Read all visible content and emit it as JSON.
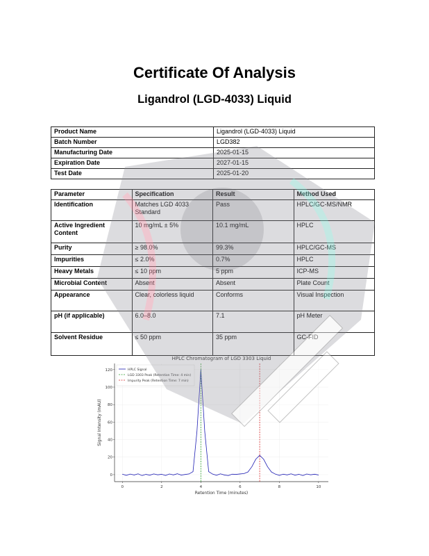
{
  "title": "Certificate Of Analysis",
  "subtitle": "Ligandrol (LGD-4033) Liquid",
  "product_info": [
    {
      "label": "Product Name",
      "value": "Ligandrol (LGD-4033) Liquid"
    },
    {
      "label": "Batch Number",
      "value": "LGD382"
    },
    {
      "label": "Manufacturing Date",
      "value": "2025-01-15"
    },
    {
      "label": "Expiration Date",
      "value": "2027-01-15"
    },
    {
      "label": "Test Date",
      "value": "2025-01-20"
    }
  ],
  "tests": {
    "headers": [
      "Parameter",
      "Specification",
      "Result",
      "Method Used"
    ],
    "rows": [
      [
        "Identification",
        "Matches LGD 4033 Standard",
        "Pass",
        "HPLC/GC-MS/NMR"
      ],
      [
        "Active Ingredient Content",
        "10 mg/mL ± 5%",
        "10.1 mg/mL",
        "HPLC"
      ],
      [
        "Purity",
        "≥ 98.0%",
        "99.3%",
        "HPLC/GC-MS"
      ],
      [
        "Impurities",
        "≤ 2.0%",
        "0.7%",
        "HPLC"
      ],
      [
        "Heavy Metals",
        "≤ 10 ppm",
        "5 ppm",
        "ICP-MS"
      ],
      [
        "Microbial Content",
        "Absent",
        "Absent",
        "Plate Count"
      ],
      [
        "Appearance",
        "Clear, colorless liquid",
        "Conforms",
        "Visual Inspection"
      ],
      [
        "pH (if applicable)",
        "6.0–8.0",
        "7.1",
        "pH Meter"
      ],
      [
        "Solvent Residue",
        "≤ 50 ppm",
        "35 ppm",
        "GC-FID"
      ]
    ]
  },
  "watermark": "BEHEMOTH LABZ",
  "chart_data": {
    "type": "line",
    "title": "HPLC Chromatogram of LGD 3303 Liquid",
    "xlabel": "Retention Time (minutes)",
    "ylabel": "Signal Intensity (mAU)",
    "xlim": [
      -0.4,
      10.5
    ],
    "ylim": [
      -8,
      127
    ],
    "xticks": [
      0,
      2,
      4,
      6,
      8,
      10
    ],
    "yticks": [
      0,
      20,
      40,
      60,
      80,
      100,
      120
    ],
    "grid": true,
    "legend_position": "top-left",
    "series": [
      {
        "name": "HPLC Signal",
        "color": "#1f1fb4",
        "style": "solid",
        "x": [
          0,
          0.2,
          0.4,
          0.6,
          0.8,
          1.0,
          1.2,
          1.4,
          1.6,
          1.8,
          2.0,
          2.2,
          2.4,
          2.6,
          2.8,
          3.0,
          3.2,
          3.4,
          3.6,
          3.8,
          4.0,
          4.2,
          4.4,
          4.6,
          4.8,
          5.0,
          5.2,
          5.4,
          5.6,
          5.8,
          6.0,
          6.2,
          6.4,
          6.6,
          6.8,
          7.0,
          7.2,
          7.4,
          7.6,
          7.8,
          8.0,
          8.2,
          8.4,
          8.6,
          8.8,
          9.0,
          9.2,
          9.4,
          9.6,
          9.8,
          10.0
        ],
        "y": [
          0.5,
          -0.8,
          0.6,
          -0.4,
          0.9,
          -1,
          0.3,
          -0.6,
          0.8,
          -0.2,
          0.4,
          -0.9,
          0.7,
          -0.3,
          1,
          -0.5,
          0.2,
          0.8,
          3.4,
          49,
          120,
          49,
          3.4,
          0.6,
          -0.7,
          0.9,
          -0.4,
          -1,
          0.5,
          0.3,
          0.8,
          1.2,
          3,
          9,
          17.6,
          22,
          17.6,
          9,
          3,
          0.6,
          -0.8,
          0.5,
          -0.3,
          0.9,
          -0.6,
          0.4,
          -1,
          0.7,
          -0.2,
          0.5,
          -0.4
        ]
      },
      {
        "name": "LGD 3303 Peak (Retention Time: 4 min)",
        "color": "#2ca02c",
        "style": "dashed",
        "x_value": 4
      },
      {
        "name": "Impurity Peak (Retention Time: 7 min)",
        "color": "#d62728",
        "style": "dashed",
        "x_value": 7
      }
    ]
  }
}
